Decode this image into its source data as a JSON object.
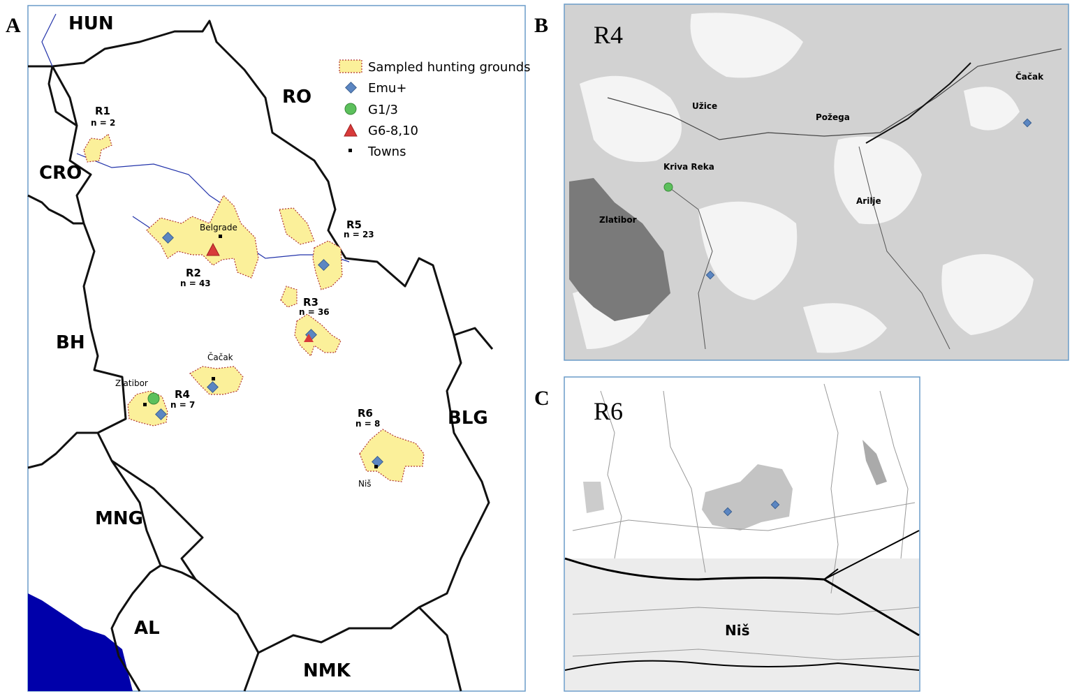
{
  "panel_a": {
    "letter": "A",
    "countries": [
      "HUN",
      "RO",
      "CRO",
      "BH",
      "MNG",
      "AL",
      "NMK",
      "BLG"
    ],
    "regions": [
      {
        "name": "R1",
        "n": "n = 2"
      },
      {
        "name": "R2",
        "n": "n = 43"
      },
      {
        "name": "R3",
        "n": "n = 36"
      },
      {
        "name": "R4",
        "n": "n = 7"
      },
      {
        "name": "R5",
        "n": "n = 23"
      },
      {
        "name": "R6",
        "n": "n = 8"
      }
    ],
    "towns": [
      "Belgrade",
      "Čačak",
      "Zlatibor",
      "Niš"
    ],
    "legend": [
      "Sampled hunting grounds",
      "Emu+",
      "G1/3",
      "G6-8,10",
      "Towns"
    ]
  },
  "panel_b": {
    "letter": "B",
    "title": "R4",
    "places": [
      "Užice",
      "Požega",
      "Čačak",
      "Kriva Reka",
      "Zlatibor",
      "Arilje"
    ]
  },
  "panel_c": {
    "letter": "C",
    "title": "R6",
    "places": [
      "Niš"
    ]
  }
}
